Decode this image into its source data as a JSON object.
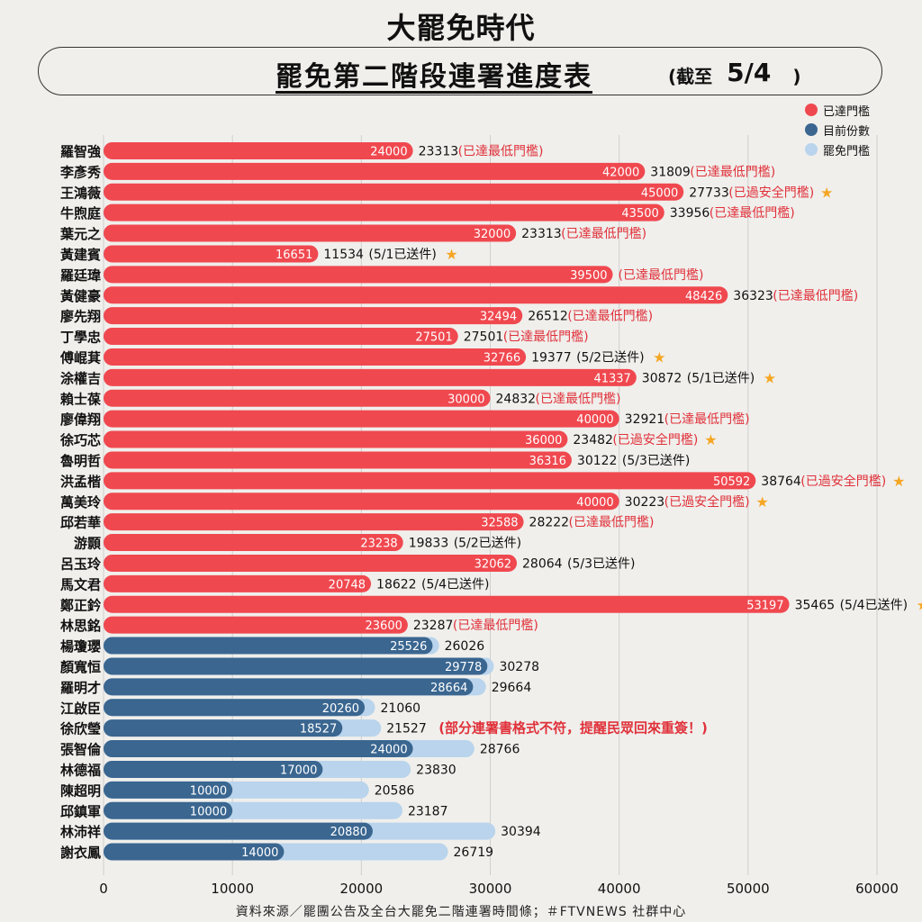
{
  "header": {
    "logo": "大罷免時代",
    "title": "罷免第二階段連署進度表",
    "date_prefix": "(截至",
    "date": "5/4",
    "date_suffix": ")"
  },
  "legend": [
    {
      "label": "已達門檻",
      "color": "#f0484f"
    },
    {
      "label": "目前份數",
      "color": "#3a6690"
    },
    {
      "label": "罷免門檻",
      "color": "#b9d4ec"
    }
  ],
  "colors": {
    "reached": "#f0484f",
    "current": "#3a6690",
    "threshold": "#b9d4ec",
    "note_red": "#e0313a",
    "star": "#f5a623",
    "grid": "#cfcfcf"
  },
  "chart_data": {
    "type": "bar",
    "orientation": "horizontal",
    "xlim": [
      0,
      60000
    ],
    "x_ticks": [
      "0",
      "10000",
      "20000",
      "30000",
      "40000",
      "50000",
      "60000"
    ],
    "grid": true,
    "legend_position": "top-right",
    "categories": [
      "羅智強",
      "李彥秀",
      "王鴻薇",
      "牛煦庭",
      "葉元之",
      "黃建賓",
      "羅廷瑋",
      "黃健豪",
      "廖先翔",
      "丁學忠",
      "傅崐萁",
      "涂權吉",
      "賴士葆",
      "廖偉翔",
      "徐巧芯",
      "魯明哲",
      "洪孟楷",
      "萬美玲",
      "邱若華",
      "游顥",
      "呂玉玲",
      "馬文君",
      "鄭正鈐",
      "林思銘",
      "楊瓊瓔",
      "顏寬恒",
      "羅明才",
      "江啟臣",
      "徐欣瑩",
      "張智倫",
      "林德福",
      "陳超明",
      "邱鎮軍",
      "林沛祥",
      "謝衣鳳"
    ],
    "rows": [
      {
        "name": "羅智強",
        "status": "reached",
        "bar": 24000,
        "bar_label": "24000",
        "value_text": "23313",
        "note": "(已達最低門檻)",
        "note_color": "red",
        "star": false
      },
      {
        "name": "李彥秀",
        "status": "reached",
        "bar": 42000,
        "bar_label": "42000",
        "value_text": "31809",
        "note": "(已達最低門檻)",
        "note_color": "red",
        "star": false
      },
      {
        "name": "王鴻薇",
        "status": "reached",
        "bar": 45000,
        "bar_label": "45000",
        "value_text": "27733",
        "note": "(已過安全門檻)",
        "note_color": "red",
        "star": true
      },
      {
        "name": "牛煦庭",
        "status": "reached",
        "bar": 43500,
        "bar_label": "43500",
        "value_text": "33956",
        "note": "(已達最低門檻)",
        "note_color": "red",
        "star": false
      },
      {
        "name": "葉元之",
        "status": "reached",
        "bar": 32000,
        "bar_label": "32000",
        "value_text": "23313",
        "note": "(已達最低門檻)",
        "note_color": "red",
        "star": false
      },
      {
        "name": "黃建賓",
        "status": "reached",
        "bar": 16651,
        "bar_label": "16651",
        "value_text": "11534",
        "note": "(5/1已送件)",
        "note_color": "black",
        "star": true
      },
      {
        "name": "羅廷瑋",
        "status": "reached",
        "bar": 39500,
        "bar_label": "39500",
        "value_text": "",
        "note": "(已達最低門檻)",
        "note_color": "red",
        "star": false
      },
      {
        "name": "黃健豪",
        "status": "reached",
        "bar": 48426,
        "bar_label": "48426",
        "value_text": "36323",
        "note": "(已達最低門檻)",
        "note_color": "red",
        "star": false
      },
      {
        "name": "廖先翔",
        "status": "reached",
        "bar": 32494,
        "bar_label": "32494",
        "value_text": "26512",
        "note": "(已達最低門檻)",
        "note_color": "red",
        "star": false
      },
      {
        "name": "丁學忠",
        "status": "reached",
        "bar": 27501,
        "bar_label": "27501",
        "value_text": "27501",
        "note": "(已達最低門檻)",
        "note_color": "red",
        "star": false
      },
      {
        "name": "傅崐萁",
        "status": "reached",
        "bar": 32766,
        "bar_label": "32766",
        "value_text": "19377",
        "note": "(5/2已送件)",
        "note_color": "black",
        "star": true
      },
      {
        "name": "涂權吉",
        "status": "reached",
        "bar": 41337,
        "bar_label": "41337",
        "value_text": "30872",
        "note": "(5/1已送件)",
        "note_color": "black",
        "star": true
      },
      {
        "name": "賴士葆",
        "status": "reached",
        "bar": 30000,
        "bar_label": "30000",
        "value_text": "24832",
        "note": "(已達最低門檻)",
        "note_color": "red",
        "star": false
      },
      {
        "name": "廖偉翔",
        "status": "reached",
        "bar": 40000,
        "bar_label": "40000",
        "value_text": "32921",
        "note": "(已達最低門檻)",
        "note_color": "red",
        "star": false
      },
      {
        "name": "徐巧芯",
        "status": "reached",
        "bar": 36000,
        "bar_label": "36000",
        "value_text": "23482",
        "note": "(已過安全門檻)",
        "note_color": "red",
        "star": true
      },
      {
        "name": "魯明哲",
        "status": "reached",
        "bar": 36316,
        "bar_label": "36316",
        "value_text": "30122",
        "note": "(5/3已送件)",
        "note_color": "black",
        "star": false
      },
      {
        "name": "洪孟楷",
        "status": "reached",
        "bar": 50592,
        "bar_label": "50592",
        "value_text": "38764",
        "note": "(已過安全門檻)",
        "note_color": "red",
        "star": true
      },
      {
        "name": "萬美玲",
        "status": "reached",
        "bar": 40000,
        "bar_label": "40000",
        "value_text": "30223",
        "note": "(已過安全門檻)",
        "note_color": "red",
        "star": true
      },
      {
        "name": "邱若華",
        "status": "reached",
        "bar": 32588,
        "bar_label": "32588",
        "value_text": "28222",
        "note": "(已達最低門檻)",
        "note_color": "red",
        "star": false
      },
      {
        "name": "游顥",
        "status": "reached",
        "bar": 23238,
        "bar_label": "23238",
        "value_text": "19833",
        "note": "(5/2已送件)",
        "note_color": "black",
        "star": false
      },
      {
        "name": "呂玉玲",
        "status": "reached",
        "bar": 32062,
        "bar_label": "32062",
        "value_text": "28064",
        "note": "(5/3已送件)",
        "note_color": "black",
        "star": false
      },
      {
        "name": "馬文君",
        "status": "reached",
        "bar": 20748,
        "bar_label": "20748",
        "value_text": "18622",
        "note": "(5/4已送件)",
        "note_color": "black",
        "star": false
      },
      {
        "name": "鄭正鈐",
        "status": "reached",
        "bar": 53197,
        "bar_label": "53197",
        "value_text": "35465",
        "note": "(5/4已送件)",
        "note_color": "black",
        "star": true
      },
      {
        "name": "林思銘",
        "status": "reached",
        "bar": 23600,
        "bar_label": "23600",
        "value_text": "23287",
        "note": "(已達最低門檻)",
        "note_color": "red",
        "star": false
      },
      {
        "name": "楊瓊瓔",
        "status": "current",
        "bar": 25526,
        "bar_label": "25526",
        "threshold": 26026,
        "value_text": "26026",
        "note": "",
        "star": false
      },
      {
        "name": "顏寬恒",
        "status": "current",
        "bar": 29778,
        "bar_label": "29778",
        "threshold": 30278,
        "value_text": "30278",
        "note": "",
        "star": false
      },
      {
        "name": "羅明才",
        "status": "current",
        "bar": 28664,
        "bar_label": "28664",
        "threshold": 29664,
        "value_text": "29664",
        "note": "",
        "star": false
      },
      {
        "name": "江啟臣",
        "status": "current",
        "bar": 20260,
        "bar_label": "20260",
        "threshold": 21060,
        "value_text": "21060",
        "note": "",
        "star": false
      },
      {
        "name": "徐欣瑩",
        "status": "current",
        "bar": 18527,
        "bar_label": "18527",
        "threshold": 21527,
        "value_text": "21527",
        "note": "(部分連署書格式不符，提醒民眾回來重簽！)",
        "note_color": "bold-red",
        "star": false
      },
      {
        "name": "張智倫",
        "status": "current",
        "bar": 24000,
        "bar_label": "24000",
        "threshold": 28766,
        "value_text": "28766",
        "note": "",
        "star": false
      },
      {
        "name": "林德福",
        "status": "current",
        "bar": 17000,
        "bar_label": "17000",
        "threshold": 23830,
        "value_text": "23830",
        "note": "",
        "star": false
      },
      {
        "name": "陳超明",
        "status": "current",
        "bar": 10000,
        "bar_label": "10000",
        "threshold": 20586,
        "value_text": "20586",
        "note": "",
        "star": false
      },
      {
        "name": "邱鎮軍",
        "status": "current",
        "bar": 10000,
        "bar_label": "10000",
        "threshold": 23187,
        "value_text": "23187",
        "note": "",
        "star": false
      },
      {
        "name": "林沛祥",
        "status": "current",
        "bar": 20880,
        "bar_label": "20880",
        "threshold": 30394,
        "value_text": "30394",
        "note": "",
        "star": false
      },
      {
        "name": "謝衣鳳",
        "status": "current",
        "bar": 14000,
        "bar_label": "14000",
        "threshold": 26719,
        "value_text": "26719",
        "note": "",
        "star": false
      }
    ]
  },
  "footer": {
    "source": "資料來源／罷團公告及全台大罷免二階連署時間條；＃FTVNEWS 社群中心"
  }
}
